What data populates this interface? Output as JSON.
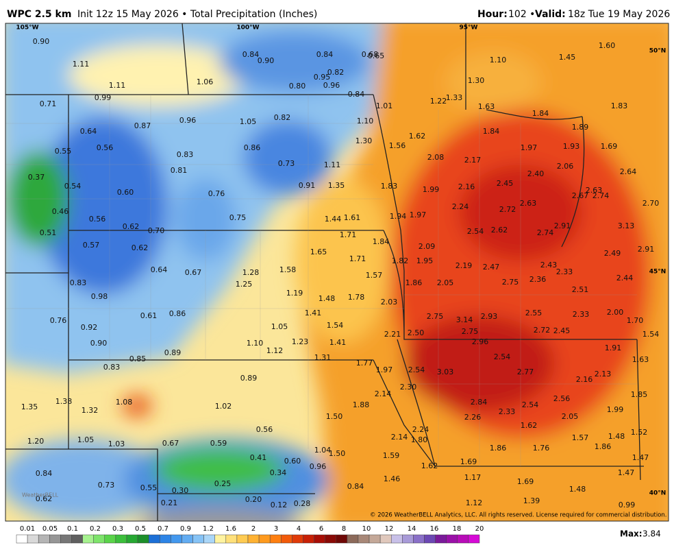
{
  "header": {
    "product": "WPC 2.5 km",
    "info": "Init 12z 15 May 2026 • Total Precipitation (Inches)",
    "hour_label": "Hour:",
    "hour": "102 •",
    "valid_label": "Valid:",
    "valid": "18z Tue 19 May 2026"
  },
  "map": {
    "axis_labels": [
      "105°W",
      "100°W",
      "95°W",
      "50°N",
      "45°N",
      "40°N"
    ],
    "labels": [
      "0.90",
      "1.11",
      "1.11",
      "0.99",
      "1.06",
      "0.84",
      "0.90",
      "0.84",
      "0.68",
      "0.65",
      "0.82",
      "0.95",
      "0.96",
      "0.80",
      "0.84",
      "1.10",
      "1.30",
      "1.45",
      "1.60",
      "1.33",
      "1.22",
      "1.63",
      "1.84",
      "1.89",
      "1.83",
      "1.01",
      "1.10",
      "0.71",
      "0.96",
      "1.05",
      "0.82",
      "0.87",
      "0.64",
      "0.56",
      "0.55",
      "1.30",
      "1.56",
      "1.62",
      "1.84",
      "1.97",
      "1.93",
      "1.69",
      "0.86",
      "0.83",
      "0.73",
      "1.11",
      "2.08",
      "2.17",
      "2.06",
      "2.64",
      "0.37",
      "0.54",
      "0.81",
      "0.91",
      "1.35",
      "1.83",
      "1.99",
      "2.16",
      "2.45",
      "2.40",
      "2.63",
      "2.67",
      "2.74",
      "0.60",
      "0.76",
      "0.46",
      "0.56",
      "0.75",
      "1.44",
      "1.61",
      "1.94",
      "1.97",
      "2.24",
      "2.72",
      "2.63",
      "2.70",
      "0.62",
      "0.70",
      "2.54",
      "2.62",
      "2.91",
      "3.13",
      "0.51",
      "1.71",
      "1.84",
      "2.74",
      "0.57",
      "0.62",
      "1.65",
      "1.71",
      "2.09",
      "2.49",
      "2.91",
      "1.82",
      "1.95",
      "2.19",
      "2.47",
      "2.43",
      "2.33",
      "0.64",
      "0.67",
      "1.28",
      "1.58",
      "1.57",
      "2.36",
      "2.44",
      "0.83",
      "1.25",
      "1.86",
      "2.05",
      "2.75",
      "2.51",
      "0.98",
      "1.19",
      "1.48",
      "1.78",
      "2.03",
      "1.41",
      "0.61",
      "0.86",
      "0.76",
      "2.75",
      "3.14",
      "2.93",
      "2.55",
      "2.33",
      "2.00",
      "1.70",
      "0.92",
      "1.05",
      "1.54",
      "2.72",
      "2.45",
      "2.75",
      "2.21",
      "2.50",
      "1.54",
      "0.90",
      "1.10",
      "1.23",
      "1.41",
      "2.96",
      "1.91",
      "0.89",
      "1.12",
      "2.54",
      "1.63",
      "0.85",
      "1.31",
      "1.77",
      "0.83",
      "1.97",
      "2.54",
      "3.03",
      "2.77",
      "2.13",
      "2.16",
      "0.89",
      "2.30",
      "2.14",
      "1.85",
      "1.38",
      "1.08",
      "2.84",
      "2.56",
      "1.88",
      "2.54",
      "1.35",
      "1.32",
      "1.02",
      "2.33",
      "1.99",
      "1.50",
      "2.26",
      "2.05",
      "0.56",
      "2.24",
      "1.62",
      "1.52",
      "1.20",
      "1.05",
      "1.03",
      "0.67",
      "0.59",
      "2.14",
      "1.80",
      "1.57",
      "1.48",
      "1.86",
      "1.76",
      "1.86",
      "1.04",
      "1.50",
      "1.59",
      "1.47",
      "0.41",
      "0.60",
      "0.96",
      "1.62",
      "1.69",
      "0.84",
      "0.34",
      "1.17",
      "1.47",
      "1.46",
      "1.69",
      "0.73",
      "0.25",
      "0.55",
      "0.84",
      "1.48",
      "0.30",
      "0.62",
      "0.20",
      "0.21",
      "0.12",
      "0.28",
      "1.12",
      "1.39",
      "0.99"
    ],
    "copyright": "© 2026 WeatherBELL Analytics, LLC. All rights reserved. License required for commercial distribution.",
    "watermark": "WeatherBELL"
  },
  "colorbar": {
    "labels": [
      "0.01",
      "0.05",
      "0.1",
      "0.2",
      "0.3",
      "0.5",
      "0.7",
      "0.9",
      "1.2",
      "1.6",
      "2",
      "3",
      "4",
      "6",
      "8",
      "10",
      "12",
      "14",
      "16",
      "18",
      "20"
    ]
  },
  "footer": {
    "max_label": "Max:",
    "max": "3.84"
  }
}
